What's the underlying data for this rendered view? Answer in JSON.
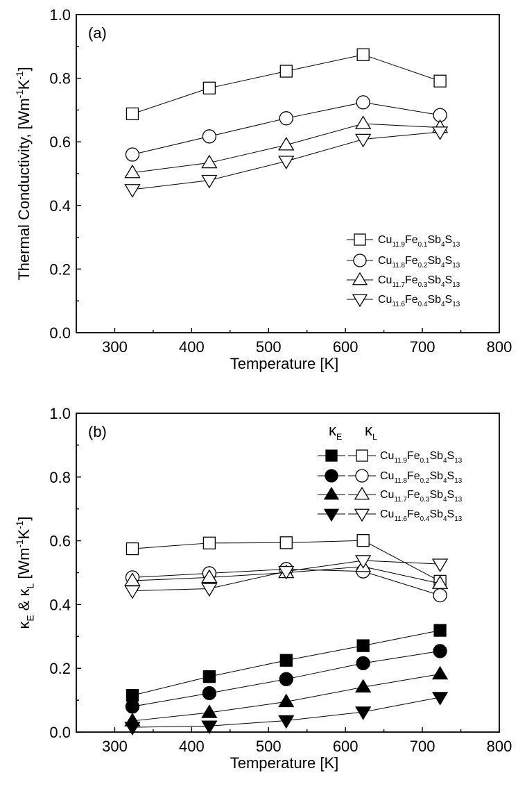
{
  "chart_data": [
    {
      "type": "line",
      "panel_label": "(a)",
      "xlabel": "Temperature [K]",
      "ylabel": "Thermal Conductivity, κ [Wm-1K-1]",
      "xlim": [
        250,
        800
      ],
      "ylim": [
        0.0,
        1.0
      ],
      "xticks": [
        "300",
        "400",
        "500",
        "600",
        "700",
        "800"
      ],
      "yticks": [
        "0.0",
        "0.2",
        "0.4",
        "0.6",
        "0.8",
        "1.0"
      ],
      "legend_position": "center-right",
      "x": [
        323,
        423,
        523,
        623,
        723
      ],
      "series": [
        {
          "name": "Cu11.9Fe0.1Sb4S13",
          "marker": "square",
          "filled": false,
          "values": [
            0.688,
            0.769,
            0.822,
            0.874,
            0.791
          ]
        },
        {
          "name": "Cu11.8Fe0.2Sb4S13",
          "marker": "circle",
          "filled": false,
          "values": [
            0.56,
            0.617,
            0.674,
            0.724,
            0.684
          ]
        },
        {
          "name": "Cu11.7Fe0.3Sb4S13",
          "marker": "triangle-up",
          "filled": false,
          "values": [
            0.503,
            0.534,
            0.59,
            0.657,
            0.645
          ]
        },
        {
          "name": "Cu11.6Fe0.4Sb4S13",
          "marker": "triangle-down",
          "filled": false,
          "values": [
            0.45,
            0.479,
            0.539,
            0.608,
            0.631
          ]
        }
      ]
    },
    {
      "type": "line",
      "panel_label": "(b)",
      "xlabel": "Temperature [K]",
      "ylabel": "κE & κL [Wm-1K-1]",
      "xlim": [
        250,
        800
      ],
      "ylim": [
        0.0,
        1.0
      ],
      "xticks": [
        "300",
        "400",
        "500",
        "600",
        "700",
        "800"
      ],
      "yticks": [
        "0.0",
        "0.2",
        "0.4",
        "0.6",
        "0.8",
        "1.0"
      ],
      "legend_position": "top-right",
      "legend_headers": [
        "κE",
        "κL"
      ],
      "x": [
        323,
        423,
        523,
        623,
        723
      ],
      "series": [
        {
          "name": "Cu11.9Fe0.1Sb4S13",
          "quantity": "κE",
          "marker": "square",
          "filled": true,
          "values": [
            0.115,
            0.174,
            0.225,
            0.271,
            0.319
          ]
        },
        {
          "name": "Cu11.8Fe0.2Sb4S13",
          "quantity": "κE",
          "marker": "circle",
          "filled": true,
          "values": [
            0.08,
            0.122,
            0.166,
            0.216,
            0.254
          ]
        },
        {
          "name": "Cu11.7Fe0.3Sb4S13",
          "quantity": "κE",
          "marker": "triangle-up",
          "filled": true,
          "values": [
            0.035,
            0.061,
            0.095,
            0.141,
            0.182
          ]
        },
        {
          "name": "Cu11.6Fe0.4Sb4S13",
          "quantity": "κE",
          "marker": "triangle-down",
          "filled": true,
          "values": [
            0.015,
            0.019,
            0.036,
            0.063,
            0.109
          ]
        },
        {
          "name": "Cu11.9Fe0.1Sb4S13",
          "quantity": "κL",
          "marker": "square",
          "filled": false,
          "values": [
            0.575,
            0.593,
            0.594,
            0.601,
            0.473
          ]
        },
        {
          "name": "Cu11.8Fe0.2Sb4S13",
          "quantity": "κL",
          "marker": "circle",
          "filled": false,
          "values": [
            0.485,
            0.498,
            0.511,
            0.504,
            0.429
          ]
        },
        {
          "name": "Cu11.7Fe0.3Sb4S13",
          "quantity": "κL",
          "marker": "triangle-up",
          "filled": false,
          "values": [
            0.475,
            0.485,
            0.5,
            0.519,
            0.466
          ]
        },
        {
          "name": "Cu11.6Fe0.4Sb4S13",
          "quantity": "κL",
          "marker": "triangle-down",
          "filled": false,
          "values": [
            0.443,
            0.45,
            0.504,
            0.538,
            0.527
          ]
        }
      ]
    }
  ]
}
